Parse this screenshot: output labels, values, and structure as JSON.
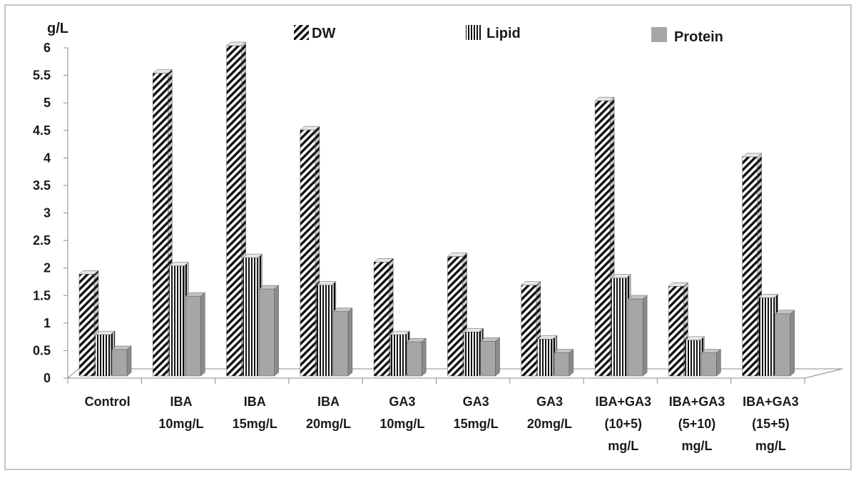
{
  "chart_data": {
    "type": "bar",
    "ylabel": "g/L",
    "ylim": [
      0,
      6
    ],
    "yticks": [
      "0",
      "0.5",
      "1",
      "1.5",
      "2",
      "2.5",
      "3",
      "3.5",
      "4",
      "4.5",
      "5",
      "5.5",
      "6"
    ],
    "categories": [
      [
        "Control"
      ],
      [
        "IBA",
        "10mg/L"
      ],
      [
        "IBA",
        "15mg/L"
      ],
      [
        "IBA",
        "20mg/L"
      ],
      [
        "GA3",
        "10mg/L"
      ],
      [
        "GA3",
        "15mg/L"
      ],
      [
        "GA3",
        "20mg/L"
      ],
      [
        "IBA+GA3",
        "(10+5)",
        "mg/L"
      ],
      [
        "IBA+GA3",
        "(5+10)",
        "mg/L"
      ],
      [
        "IBA+GA3",
        "(15+5)",
        "mg/L"
      ]
    ],
    "series": [
      {
        "name": "DW",
        "pattern": "diagonal-hatch",
        "values": [
          1.85,
          5.5,
          6.0,
          4.47,
          2.07,
          2.17,
          1.65,
          5.0,
          1.63,
          3.98
        ]
      },
      {
        "name": "Lipid",
        "pattern": "vertical-lines",
        "values": [
          0.75,
          2.0,
          2.15,
          1.65,
          0.75,
          0.8,
          0.67,
          1.78,
          0.65,
          1.42
        ]
      },
      {
        "name": "Protein",
        "pattern": "solid",
        "color": "#a6a6a6",
        "values": [
          0.48,
          1.45,
          1.58,
          1.17,
          0.62,
          0.63,
          0.42,
          1.4,
          0.42,
          1.13
        ]
      }
    ],
    "grid": false,
    "legend": "top"
  }
}
